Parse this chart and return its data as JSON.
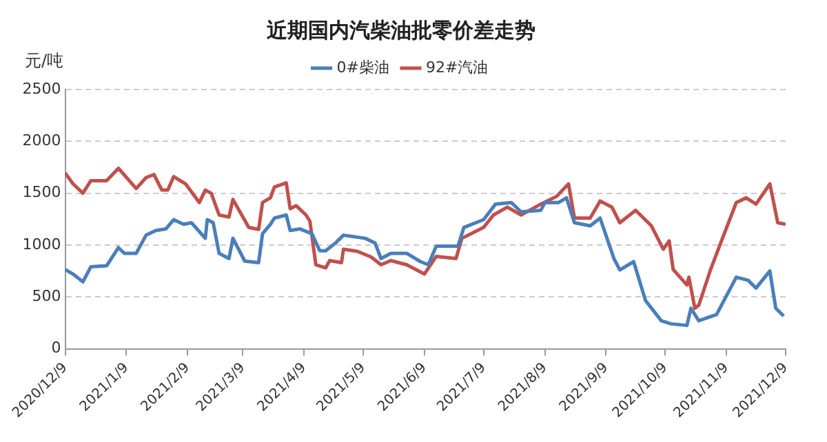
{
  "chart_data": {
    "type": "line",
    "title": "近期国内汽柴油批零价差走势",
    "ylabel": "元/吨",
    "xlim": [
      "2020-12-09",
      "2021-12-09"
    ],
    "xticks": [
      {
        "value": "2020-12-09",
        "label": "2020/12/9"
      },
      {
        "value": "2021-01-09",
        "label": "2021/1/9"
      },
      {
        "value": "2021-02-09",
        "label": "2021/2/9"
      },
      {
        "value": "2021-03-09",
        "label": "2021/3/9"
      },
      {
        "value": "2021-04-09",
        "label": "2021/4/9"
      },
      {
        "value": "2021-05-09",
        "label": "2021/5/9"
      },
      {
        "value": "2021-06-09",
        "label": "2021/6/9"
      },
      {
        "value": "2021-07-09",
        "label": "2021/7/9"
      },
      {
        "value": "2021-08-09",
        "label": "2021/8/9"
      },
      {
        "value": "2021-09-09",
        "label": "2021/9/9"
      },
      {
        "value": "2021-10-09",
        "label": "2021/10/9"
      },
      {
        "value": "2021-11-09",
        "label": "2021/11/9"
      },
      {
        "value": "2021-12-09",
        "label": "2021/12/9"
      }
    ],
    "ylim": [
      0,
      2500
    ],
    "yticks": [
      0,
      500,
      1000,
      1500,
      2000,
      2500
    ],
    "grid": "y",
    "legend": "top",
    "marker": "none",
    "line_style": "solid",
    "series": [
      {
        "name": "0#柴油",
        "color": "#4a7ebb",
        "x": [
          "2020-12-09",
          "2020-12-13",
          "2020-12-18",
          "2020-12-22",
          "2020-12-30",
          "2021-01-05",
          "2021-01-08",
          "2021-01-14",
          "2021-01-19",
          "2021-01-24",
          "2021-01-29",
          "2021-02-02",
          "2021-02-07",
          "2021-02-11",
          "2021-02-18",
          "2021-02-19",
          "2021-02-22",
          "2021-02-25",
          "2021-03-02",
          "2021-03-04",
          "2021-03-10",
          "2021-03-17",
          "2021-03-19",
          "2021-03-23",
          "2021-03-25",
          "2021-03-31",
          "2021-04-02",
          "2021-04-07",
          "2021-04-13",
          "2021-04-17",
          "2021-04-20",
          "2021-04-25",
          "2021-04-29",
          "2021-05-10",
          "2021-05-15",
          "2021-05-18",
          "2021-05-23",
          "2021-05-31",
          "2021-06-07",
          "2021-06-11",
          "2021-06-15",
          "2021-06-26",
          "2021-06-29",
          "2021-07-09",
          "2021-07-15",
          "2021-07-23",
          "2021-07-28",
          "2021-08-07",
          "2021-08-09",
          "2021-08-16",
          "2021-08-20",
          "2021-08-24",
          "2021-09-01",
          "2021-09-06",
          "2021-09-13",
          "2021-09-16",
          "2021-09-23",
          "2021-09-29",
          "2021-10-07",
          "2021-10-12",
          "2021-10-20",
          "2021-10-22",
          "2021-10-26",
          "2021-11-04",
          "2021-11-14",
          "2021-11-20",
          "2021-11-24",
          "2021-12-01",
          "2021-12-04",
          "2021-12-08"
        ],
        "values": [
          765,
          720,
          645,
          790,
          800,
          975,
          920,
          920,
          1095,
          1140,
          1155,
          1245,
          1200,
          1215,
          1065,
          1245,
          1215,
          920,
          870,
          1065,
          845,
          830,
          1110,
          1200,
          1260,
          1290,
          1140,
          1155,
          1110,
          945,
          945,
          1020,
          1095,
          1065,
          1020,
          870,
          920,
          920,
          840,
          810,
          990,
          990,
          1170,
          1245,
          1395,
          1410,
          1320,
          1335,
          1410,
          1410,
          1455,
          1215,
          1185,
          1260,
          870,
          760,
          840,
          465,
          270,
          240,
          225,
          390,
          270,
          330,
          690,
          660,
          585,
          750,
          390,
          315
        ]
      },
      {
        "name": "92#汽油",
        "color": "#c0504d",
        "x": [
          "2020-12-09",
          "2020-12-13",
          "2020-12-18",
          "2020-12-22",
          "2020-12-30",
          "2021-01-05",
          "2021-01-14",
          "2021-01-19",
          "2021-01-23",
          "2021-01-27",
          "2021-01-30",
          "2021-02-02",
          "2021-02-08",
          "2021-02-15",
          "2021-02-18",
          "2021-02-21",
          "2021-02-25",
          "2021-03-02",
          "2021-03-04",
          "2021-03-12",
          "2021-03-17",
          "2021-03-19",
          "2021-03-23",
          "2021-03-25",
          "2021-03-31",
          "2021-04-02",
          "2021-04-05",
          "2021-04-10",
          "2021-04-12",
          "2021-04-15",
          "2021-04-20",
          "2021-04-22",
          "2021-04-28",
          "2021-04-29",
          "2021-05-06",
          "2021-05-13",
          "2021-05-18",
          "2021-05-23",
          "2021-05-31",
          "2021-06-09",
          "2021-06-15",
          "2021-06-25",
          "2021-06-28",
          "2021-07-09",
          "2021-07-14",
          "2021-07-21",
          "2021-07-28",
          "2021-08-07",
          "2021-08-15",
          "2021-08-21",
          "2021-08-24",
          "2021-09-01",
          "2021-09-06",
          "2021-09-12",
          "2021-09-16",
          "2021-09-24",
          "2021-10-02",
          "2021-10-08",
          "2021-10-11",
          "2021-10-13",
          "2021-10-20",
          "2021-10-21",
          "2021-10-24",
          "2021-10-26",
          "2021-11-01",
          "2021-11-07",
          "2021-11-14",
          "2021-11-19",
          "2021-11-24",
          "2021-12-01",
          "2021-12-05",
          "2021-12-09"
        ],
        "values": [
          1695,
          1590,
          1500,
          1620,
          1620,
          1740,
          1545,
          1650,
          1680,
          1530,
          1530,
          1660,
          1590,
          1410,
          1530,
          1500,
          1290,
          1270,
          1440,
          1170,
          1150,
          1410,
          1455,
          1560,
          1600,
          1350,
          1380,
          1290,
          1230,
          810,
          780,
          850,
          830,
          960,
          940,
          885,
          810,
          850,
          810,
          720,
          890,
          870,
          1065,
          1170,
          1290,
          1365,
          1290,
          1395,
          1470,
          1590,
          1260,
          1260,
          1425,
          1365,
          1215,
          1335,
          1185,
          960,
          1040,
          765,
          615,
          690,
          390,
          420,
          765,
          1065,
          1410,
          1455,
          1395,
          1590,
          1215,
          1200
        ]
      }
    ]
  }
}
